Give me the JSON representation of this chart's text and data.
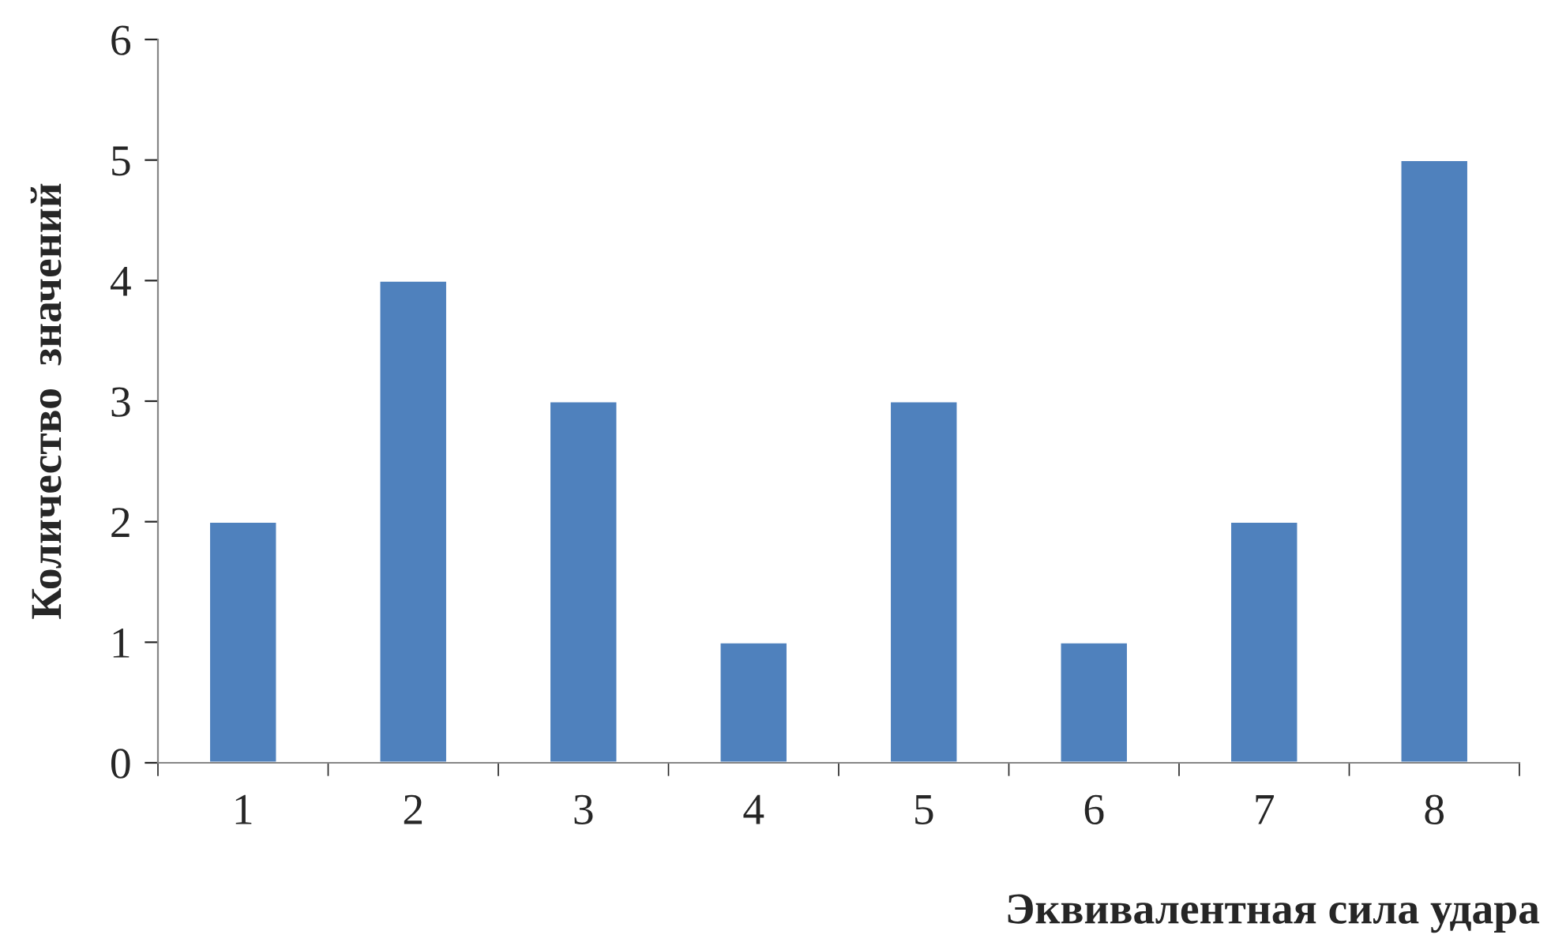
{
  "chart_data": {
    "type": "bar",
    "xlabel": "Эквивалентная сила удара",
    "ylabel": "Количество  значений",
    "categories": [
      "1",
      "2",
      "3",
      "4",
      "5",
      "6",
      "7",
      "8"
    ],
    "values": [
      2,
      4,
      3,
      1,
      3,
      1,
      2,
      5
    ],
    "color": "#4f81bd",
    "ylim": [
      0,
      6
    ],
    "yticks": [
      0,
      1,
      2,
      3,
      4,
      5,
      6
    ],
    "grid": false,
    "legend": false
  }
}
